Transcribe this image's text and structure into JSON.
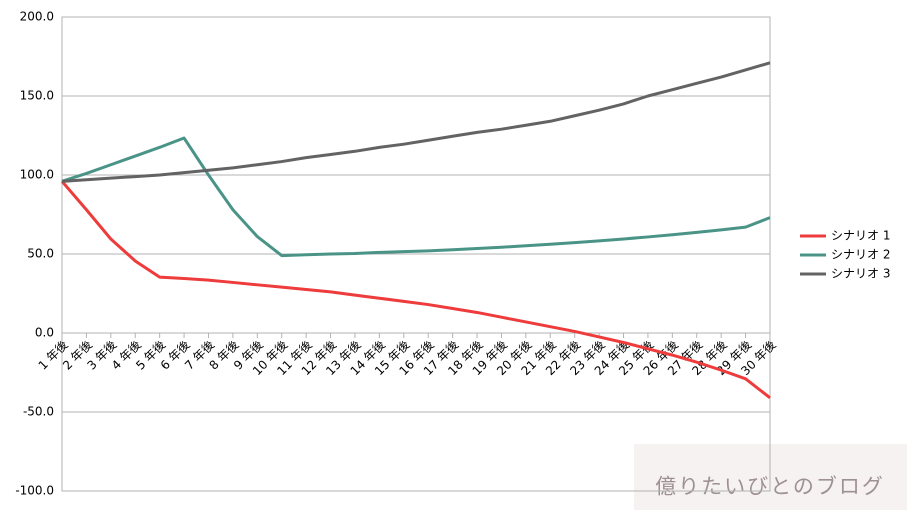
{
  "chart_data": {
    "type": "line",
    "categories": [
      "1 年後",
      "2 年後",
      "3 年後",
      "4 年後",
      "5 年後",
      "6 年後",
      "7 年後",
      "8 年後",
      "9 年後",
      "10 年後",
      "11 年後",
      "12 年後",
      "13 年後",
      "14 年後",
      "15 年後",
      "16 年後",
      "17 年後",
      "18 年後",
      "19 年後",
      "20 年後",
      "21 年後",
      "22 年後",
      "23 年後",
      "24 年後",
      "25 年後",
      "26 年後",
      "27 年後",
      "28 年後",
      "29 年後",
      "30 年後"
    ],
    "series": [
      {
        "name": "シナリオ 1",
        "color": "#ee3b3b",
        "values": [
          96,
          78,
          59.5,
          45.6,
          35.4,
          34.5,
          33.5,
          32,
          30.5,
          29,
          27.5,
          26,
          24,
          22,
          20,
          18,
          15.5,
          13,
          10,
          7,
          4,
          1,
          -2.5,
          -6,
          -10,
          -14,
          -18.5,
          -23.5,
          -29,
          -41
        ]
      },
      {
        "name": "シナリオ 2",
        "color": "#4a9487",
        "values": [
          96,
          101,
          106.5,
          112,
          117.5,
          123.4,
          100,
          78,
          61,
          49,
          49.5,
          50,
          50.3,
          51,
          51.5,
          52,
          52.7,
          53.5,
          54.3,
          55.2,
          56.2,
          57.2,
          58.3,
          59.5,
          60.8,
          62.2,
          63.7,
          65.3,
          67,
          73
        ]
      },
      {
        "name": "シナリオ 3",
        "color": "#636363",
        "values": [
          96,
          97,
          98,
          99,
          100,
          101.5,
          103,
          104.5,
          106.5,
          108.5,
          111,
          113,
          115,
          117.5,
          119.5,
          122,
          124.5,
          127,
          129,
          131.5,
          134,
          137.5,
          141,
          145,
          150,
          154,
          158,
          162,
          166.5,
          171
        ]
      }
    ],
    "ylim": [
      -100,
      200
    ],
    "yticks": [
      {
        "value": -100,
        "label": "-100.0"
      },
      {
        "value": -50,
        "label": "-50.0"
      },
      {
        "value": 0,
        "label": "0.0"
      },
      {
        "value": 50,
        "label": "50.0"
      },
      {
        "value": 100,
        "label": "100.0"
      },
      {
        "value": 150,
        "label": "150.0"
      },
      {
        "value": 200,
        "label": "200.0"
      }
    ],
    "grid": true,
    "legend": "right",
    "watermark": "億りたいびとのブログ"
  }
}
